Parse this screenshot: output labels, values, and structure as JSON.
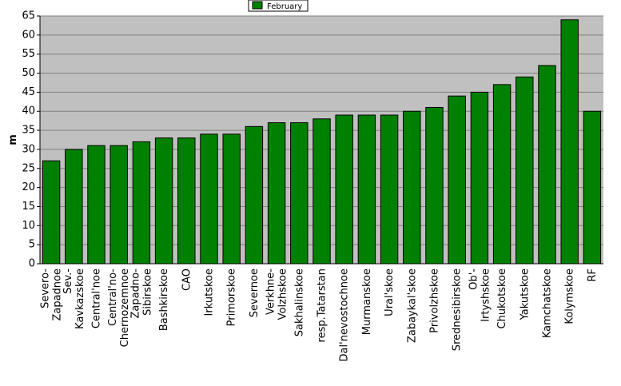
{
  "chart_data": {
    "type": "bar",
    "y_label": "m",
    "legend": "February",
    "legend_position": "top",
    "color": "#008000",
    "categories": [
      [
        "Severo-",
        "Zapadnoe"
      ],
      [
        "Sev.-",
        "Kavkazskoe"
      ],
      [
        "Central'noe"
      ],
      [
        "Central'no-",
        "Chernozemnoe"
      ],
      [
        "Zapadno-",
        "Sibirskoe"
      ],
      [
        "Bashkirskoe"
      ],
      [
        "CAO"
      ],
      [
        "Irkutskoe"
      ],
      [
        "Primorskoe"
      ],
      [
        "Severnoe"
      ],
      [
        "Verkhne-",
        "Volzhskoe"
      ],
      [
        "Sakhalinskoe"
      ],
      [
        "resp.Tatarstan"
      ],
      [
        "Dal'nevostochnoe"
      ],
      [
        "Murmanskoe"
      ],
      [
        "Ural'skoe"
      ],
      [
        "Zabaykal'skoe"
      ],
      [
        "Privolzhskoe"
      ],
      [
        "Srednesibirskoe"
      ],
      [
        "Ob'-",
        "Irtyshskoe"
      ],
      [
        "Chukotskoe"
      ],
      [
        "Yakutskoe"
      ],
      [
        "Kamchatskoe"
      ],
      [
        "Kolymskoe"
      ],
      [
        "RF"
      ]
    ],
    "values": [
      27,
      30,
      31,
      31,
      32,
      33,
      33,
      34,
      34,
      36,
      37,
      37,
      38,
      39,
      39,
      39,
      40,
      41,
      44,
      45,
      47,
      49,
      52,
      64,
      40
    ],
    "ylim": [
      0,
      65
    ],
    "yticks": [
      0,
      5,
      10,
      15,
      20,
      25,
      30,
      35,
      40,
      45,
      50,
      55,
      60,
      65
    ],
    "grid": true
  }
}
